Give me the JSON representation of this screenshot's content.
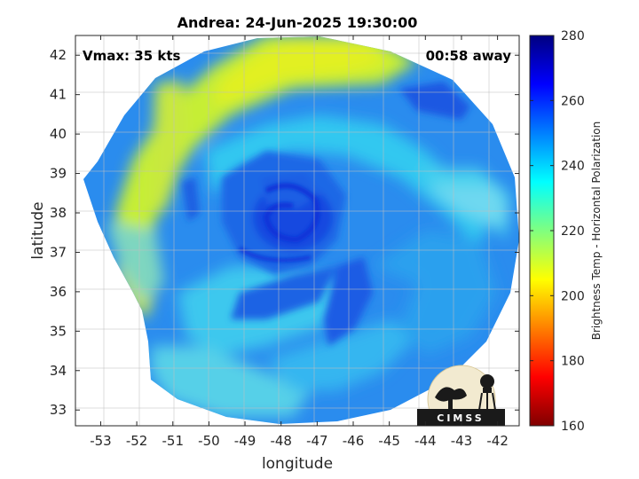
{
  "chart_data": {
    "type": "heatmap",
    "title": "Andrea: 24-Jun-2025 19:30:00",
    "xlabel": "longitude",
    "ylabel": "latitude",
    "xlim": [
      -53.7,
      -41.4
    ],
    "ylim": [
      32.6,
      42.5
    ],
    "x_ticks": [
      -53,
      -52,
      -51,
      -50,
      -49,
      -48,
      -47,
      -46,
      -45,
      -44,
      -43,
      -42
    ],
    "y_ticks": [
      33,
      34,
      35,
      36,
      37,
      38,
      39,
      40,
      41,
      42
    ],
    "grid": true,
    "annotations": {
      "left": "Vmax: 35 kts",
      "right": "00:58 away"
    },
    "storm_center": {
      "lon": -47.6,
      "lat": 37.7
    },
    "colorbar": {
      "label": "Brightness Temp - Horizontal Polarization",
      "range": [
        160,
        280
      ],
      "ticks": [
        160,
        180,
        200,
        220,
        240,
        260,
        280
      ],
      "colormap": "jet"
    },
    "logo_text": "CIMSS"
  }
}
